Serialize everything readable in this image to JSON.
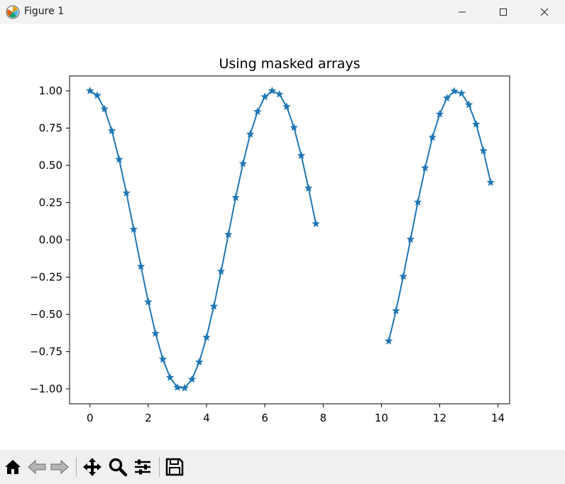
{
  "window": {
    "title": "Figure 1",
    "controls": [
      "minimize",
      "maximize",
      "close"
    ]
  },
  "toolbar": {
    "buttons": [
      "home-icon",
      "back-icon",
      "forward-icon",
      "pan-icon",
      "zoom-icon",
      "configure-subplots-icon",
      "save-icon"
    ]
  },
  "chart_data": {
    "type": "line",
    "title": "Using masked arrays",
    "xlabel": "",
    "ylabel": "",
    "xlim": [
      -0.7,
      14.4
    ],
    "ylim": [
      -1.1,
      1.1
    ],
    "xticks": [
      0,
      2,
      4,
      6,
      8,
      10,
      12,
      14
    ],
    "xtick_labels": [
      "0",
      "2",
      "4",
      "6",
      "8",
      "10",
      "12",
      "14"
    ],
    "yticks": [
      1.0,
      0.75,
      0.5,
      0.25,
      0.0,
      -0.25,
      -0.5,
      -0.75,
      -1.0
    ],
    "ytick_labels": [
      "1.00",
      "0.75",
      "0.50",
      "0.25",
      "0.00",
      "−0.25",
      "−0.50",
      "−0.75",
      "−1.00"
    ],
    "grid": false,
    "marker": "star",
    "color": "#1f77b4",
    "series": [
      {
        "x": [
          0.0,
          0.25,
          0.5,
          0.75,
          1.0,
          1.25,
          1.5,
          1.75,
          2.0,
          2.25,
          2.5,
          2.75,
          3.0,
          3.25,
          3.5,
          3.75,
          4.0,
          4.25,
          4.5,
          4.75,
          5.0,
          5.25,
          5.5,
          5.75,
          6.0,
          6.25,
          6.5,
          6.75,
          7.0,
          7.25,
          7.5,
          7.75
        ],
        "y": [
          1.0,
          0.969,
          0.878,
          0.732,
          0.54,
          0.315,
          0.071,
          -0.178,
          -0.416,
          -0.628,
          -0.801,
          -0.924,
          -0.99,
          -0.994,
          -0.936,
          -0.82,
          -0.654,
          -0.446,
          -0.211,
          0.036,
          0.284,
          0.512,
          0.709,
          0.861,
          0.96,
          1.0,
          0.977,
          0.894,
          0.754,
          0.566,
          0.347,
          0.108
        ]
      },
      {
        "x": [
          10.25,
          10.5,
          10.75,
          11.0,
          11.25,
          11.5,
          11.75,
          12.0,
          12.25,
          12.5,
          12.75,
          13.0,
          13.25,
          13.5,
          13.75
        ],
        "y": [
          -0.679,
          -0.476,
          -0.245,
          0.004,
          0.253,
          0.483,
          0.688,
          0.844,
          0.952,
          0.998,
          0.983,
          0.907,
          0.776,
          0.598,
          0.385
        ]
      }
    ]
  }
}
